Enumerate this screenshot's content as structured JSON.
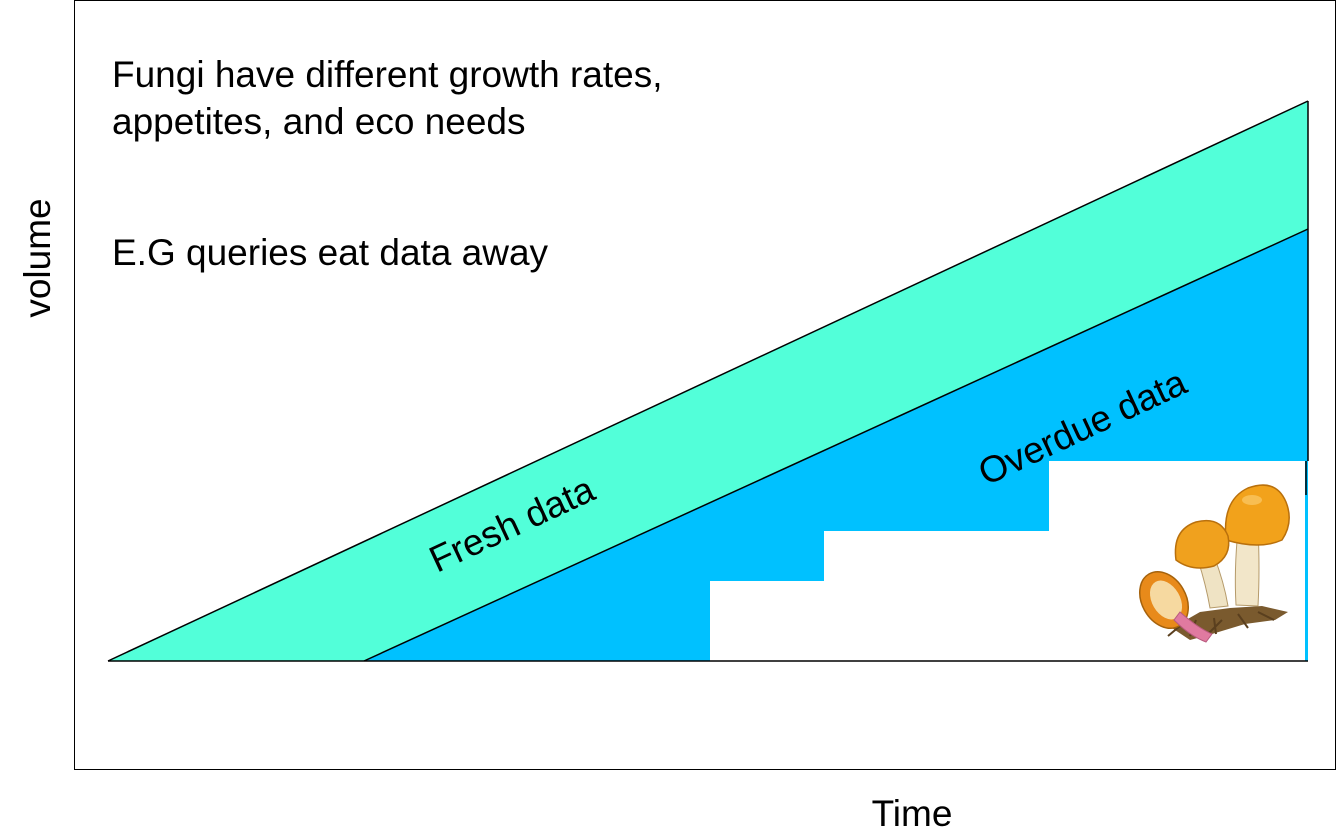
{
  "annotation": {
    "line1": "Fungi have different growth rates,",
    "line2": "appetites, and eco needs",
    "line3": "E.G queries eat data away"
  },
  "regions": {
    "fresh": {
      "label": "Fresh data",
      "color": "#52FFD9"
    },
    "overdue": {
      "label": "Overdue data",
      "color": "#00C1FF"
    }
  },
  "axes": {
    "y_label": "volume",
    "x_label": "Time"
  },
  "icons": {
    "mushroom": "mushroom-icon"
  }
}
